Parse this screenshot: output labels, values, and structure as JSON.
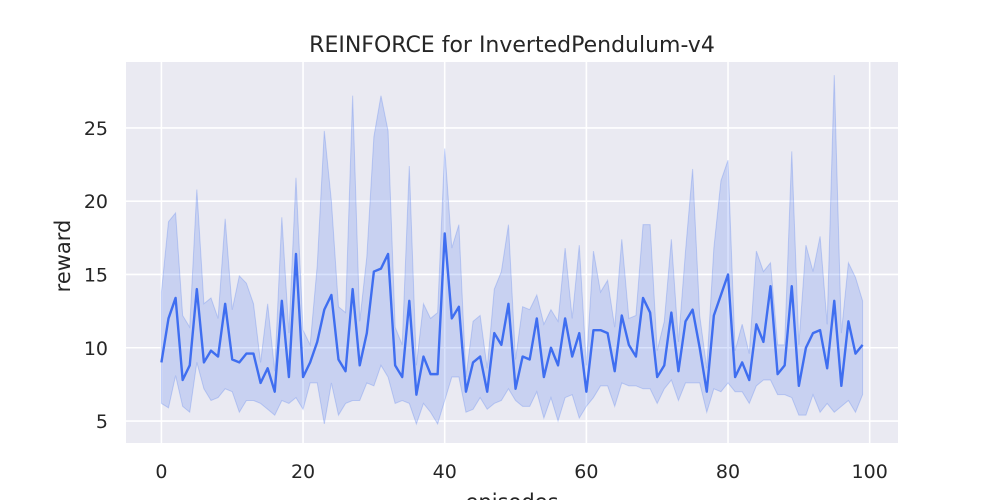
{
  "chart_data": {
    "type": "line",
    "title": "REINFORCE for InvertedPendulum-v4",
    "xlabel": "episodes",
    "ylabel": "reward",
    "xlim": [
      -5,
      104
    ],
    "ylim": [
      3.5,
      29.5
    ],
    "xticks": [
      0,
      20,
      40,
      60,
      80,
      100
    ],
    "yticks": [
      5,
      10,
      15,
      20,
      25
    ],
    "grid": true,
    "legend": "none",
    "colors": {
      "background": "#eaeaf2",
      "grid": "#ffffff",
      "line": "#3f6ef0",
      "band": "#3f6ef0"
    },
    "series": [
      {
        "x": [
          0,
          1,
          2,
          3,
          4,
          5,
          6,
          7,
          8,
          9,
          10,
          11,
          12,
          13,
          14,
          15,
          16,
          17,
          18,
          19,
          20,
          21,
          22,
          23,
          24,
          25,
          26,
          27,
          28,
          29,
          30,
          31,
          32,
          33,
          34,
          35,
          36,
          37,
          38,
          39,
          40,
          41,
          42,
          43,
          44,
          45,
          46,
          47,
          48,
          49,
          50,
          51,
          52,
          53,
          54,
          55,
          56,
          57,
          58,
          59,
          60,
          61,
          62,
          63,
          64,
          65,
          66,
          67,
          68,
          69,
          70,
          71,
          72,
          73,
          74,
          75,
          76,
          77,
          78,
          79,
          80,
          81,
          82,
          83,
          84,
          85,
          86,
          87,
          88,
          89,
          90,
          91,
          92,
          93,
          94,
          95,
          96,
          97,
          98,
          99
        ],
        "y": [
          9.0,
          12.0,
          13.4,
          7.8,
          8.8,
          14.0,
          9.0,
          9.8,
          9.4,
          13.0,
          9.2,
          9.0,
          9.6,
          9.6,
          7.6,
          8.6,
          7.0,
          13.2,
          8.0,
          16.4,
          8.0,
          9.0,
          10.4,
          12.6,
          13.6,
          9.2,
          8.4,
          14.0,
          8.8,
          11.0,
          15.2,
          15.4,
          16.4,
          8.8,
          8.0,
          13.2,
          6.8,
          9.4,
          8.2,
          8.2,
          17.8,
          12.0,
          12.8,
          7.0,
          9.0,
          9.4,
          7.0,
          11.0,
          10.2,
          13.0,
          7.2,
          9.4,
          9.2,
          12.0,
          8.0,
          10.0,
          8.8,
          12.0,
          9.4,
          11.0,
          7.0,
          11.2,
          11.2,
          11.0,
          8.4,
          12.2,
          10.2,
          9.4,
          13.4,
          12.4,
          8.0,
          8.8,
          12.4,
          8.4,
          11.8,
          12.6,
          10.0,
          7.0,
          12.2,
          13.6,
          15.0,
          8.0,
          9.0,
          7.8,
          11.6,
          10.4,
          14.2,
          8.2,
          8.8,
          14.2,
          7.4,
          10.0,
          11.0,
          11.2,
          8.6,
          13.2,
          7.4,
          11.8,
          9.6,
          10.2
        ],
        "lower": [
          6.2,
          5.9,
          8.1,
          6.0,
          5.6,
          9.0,
          7.2,
          6.4,
          6.6,
          7.2,
          7.0,
          5.6,
          6.4,
          6.4,
          6.2,
          5.8,
          5.4,
          6.4,
          6.2,
          6.6,
          5.8,
          7.6,
          7.6,
          4.8,
          7.6,
          5.4,
          6.2,
          6.4,
          6.4,
          7.6,
          7.4,
          8.8,
          8.0,
          6.2,
          6.4,
          6.2,
          4.8,
          6.2,
          5.6,
          4.8,
          6.4,
          8.0,
          8.0,
          5.6,
          5.8,
          6.6,
          5.8,
          6.2,
          6.4,
          7.2,
          6.4,
          6.0,
          6.0,
          7.0,
          5.2,
          6.6,
          5.0,
          6.6,
          6.8,
          5.2,
          6.0,
          6.6,
          7.4,
          7.4,
          6.0,
          7.6,
          7.4,
          7.4,
          7.2,
          7.2,
          6.2,
          7.2,
          7.8,
          6.4,
          7.6,
          7.6,
          7.6,
          5.6,
          7.2,
          7.0,
          7.6,
          7.0,
          7.0,
          6.2,
          7.4,
          7.8,
          7.8,
          6.8,
          6.8,
          6.6,
          5.4,
          5.4,
          6.8,
          5.6,
          6.2,
          5.6,
          6.0,
          6.4,
          5.6,
          6.8
        ],
        "upper": [
          13.8,
          18.6,
          19.2,
          12.2,
          11.4,
          20.8,
          13.0,
          13.4,
          12.0,
          18.8,
          12.6,
          14.9,
          14.4,
          13.0,
          9.0,
          13.0,
          8.4,
          18.9,
          11.0,
          21.6,
          11.2,
          10.2,
          15.6,
          24.8,
          20.0,
          12.8,
          12.4,
          27.2,
          11.8,
          16.2,
          24.4,
          27.2,
          24.8,
          11.4,
          10.2,
          22.4,
          8.8,
          13.0,
          12.0,
          12.4,
          23.6,
          16.8,
          18.4,
          8.0,
          11.8,
          12.2,
          8.6,
          14.0,
          15.2,
          18.4,
          9.2,
          12.8,
          12.6,
          13.6,
          11.6,
          12.6,
          11.8,
          16.8,
          12.0,
          17.0,
          8.8,
          16.6,
          13.8,
          14.6,
          11.4,
          17.4,
          12.0,
          12.2,
          18.4,
          18.4,
          9.8,
          11.8,
          17.4,
          10.4,
          16.6,
          22.2,
          12.2,
          8.6,
          16.8,
          21.4,
          22.8,
          9.8,
          11.6,
          9.6,
          16.6,
          15.2,
          15.8,
          10.2,
          10.2,
          23.4,
          10.2,
          17.0,
          15.2,
          17.6,
          11.6,
          28.6,
          11.0,
          15.8,
          14.8,
          13.2
        ]
      }
    ]
  }
}
